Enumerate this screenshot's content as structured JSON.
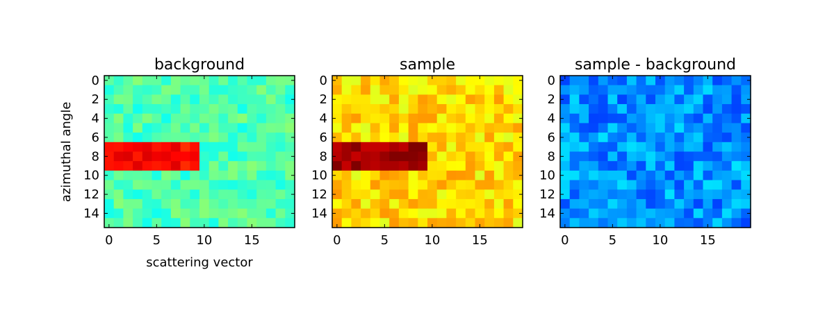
{
  "figure": {
    "ylabel": "azimuthal angle",
    "xlabel": "scattering vector"
  },
  "colors": {
    "colormap": "jet",
    "cmap_stops": [
      "#00007f",
      "#0000ff",
      "#007fff",
      "#00ffff",
      "#7fff7f",
      "#ffff00",
      "#ff7f00",
      "#ff0000",
      "#7f0000"
    ]
  },
  "chart_data": [
    {
      "type": "heatmap",
      "title": "background",
      "xlabel": "scattering vector",
      "ylabel": "azimuthal angle",
      "xticks": [
        "0",
        "5",
        "10",
        "15"
      ],
      "yticks": [
        "0",
        "2",
        "4",
        "6",
        "8",
        "10",
        "12",
        "14"
      ],
      "cols": 20,
      "rows": 16,
      "color_scale": "relative",
      "base_level": 0.45,
      "noise": 0.06,
      "hot_block": {
        "rows": [
          7,
          9
        ],
        "cols": [
          0,
          9
        ],
        "level": 0.87
      }
    },
    {
      "type": "heatmap",
      "title": "sample",
      "xlabel": "",
      "ylabel": "",
      "xticks": [
        "0",
        "5",
        "10",
        "15"
      ],
      "yticks": [
        "0",
        "2",
        "4",
        "6",
        "8",
        "10",
        "12",
        "14"
      ],
      "cols": 20,
      "rows": 16,
      "color_scale": "relative",
      "base_level": 0.66,
      "noise": 0.07,
      "hot_block": {
        "rows": [
          7,
          9
        ],
        "cols": [
          0,
          9
        ],
        "level": 0.97
      }
    },
    {
      "type": "heatmap",
      "title": "sample - background",
      "xlabel": "",
      "ylabel": "",
      "xticks": [
        "0",
        "5",
        "10",
        "15"
      ],
      "yticks": [
        "0",
        "2",
        "4",
        "6",
        "8",
        "10",
        "12",
        "14"
      ],
      "cols": 20,
      "rows": 16,
      "color_scale": "relative",
      "base_level": 0.27,
      "noise": 0.08,
      "hot_block": null
    }
  ]
}
